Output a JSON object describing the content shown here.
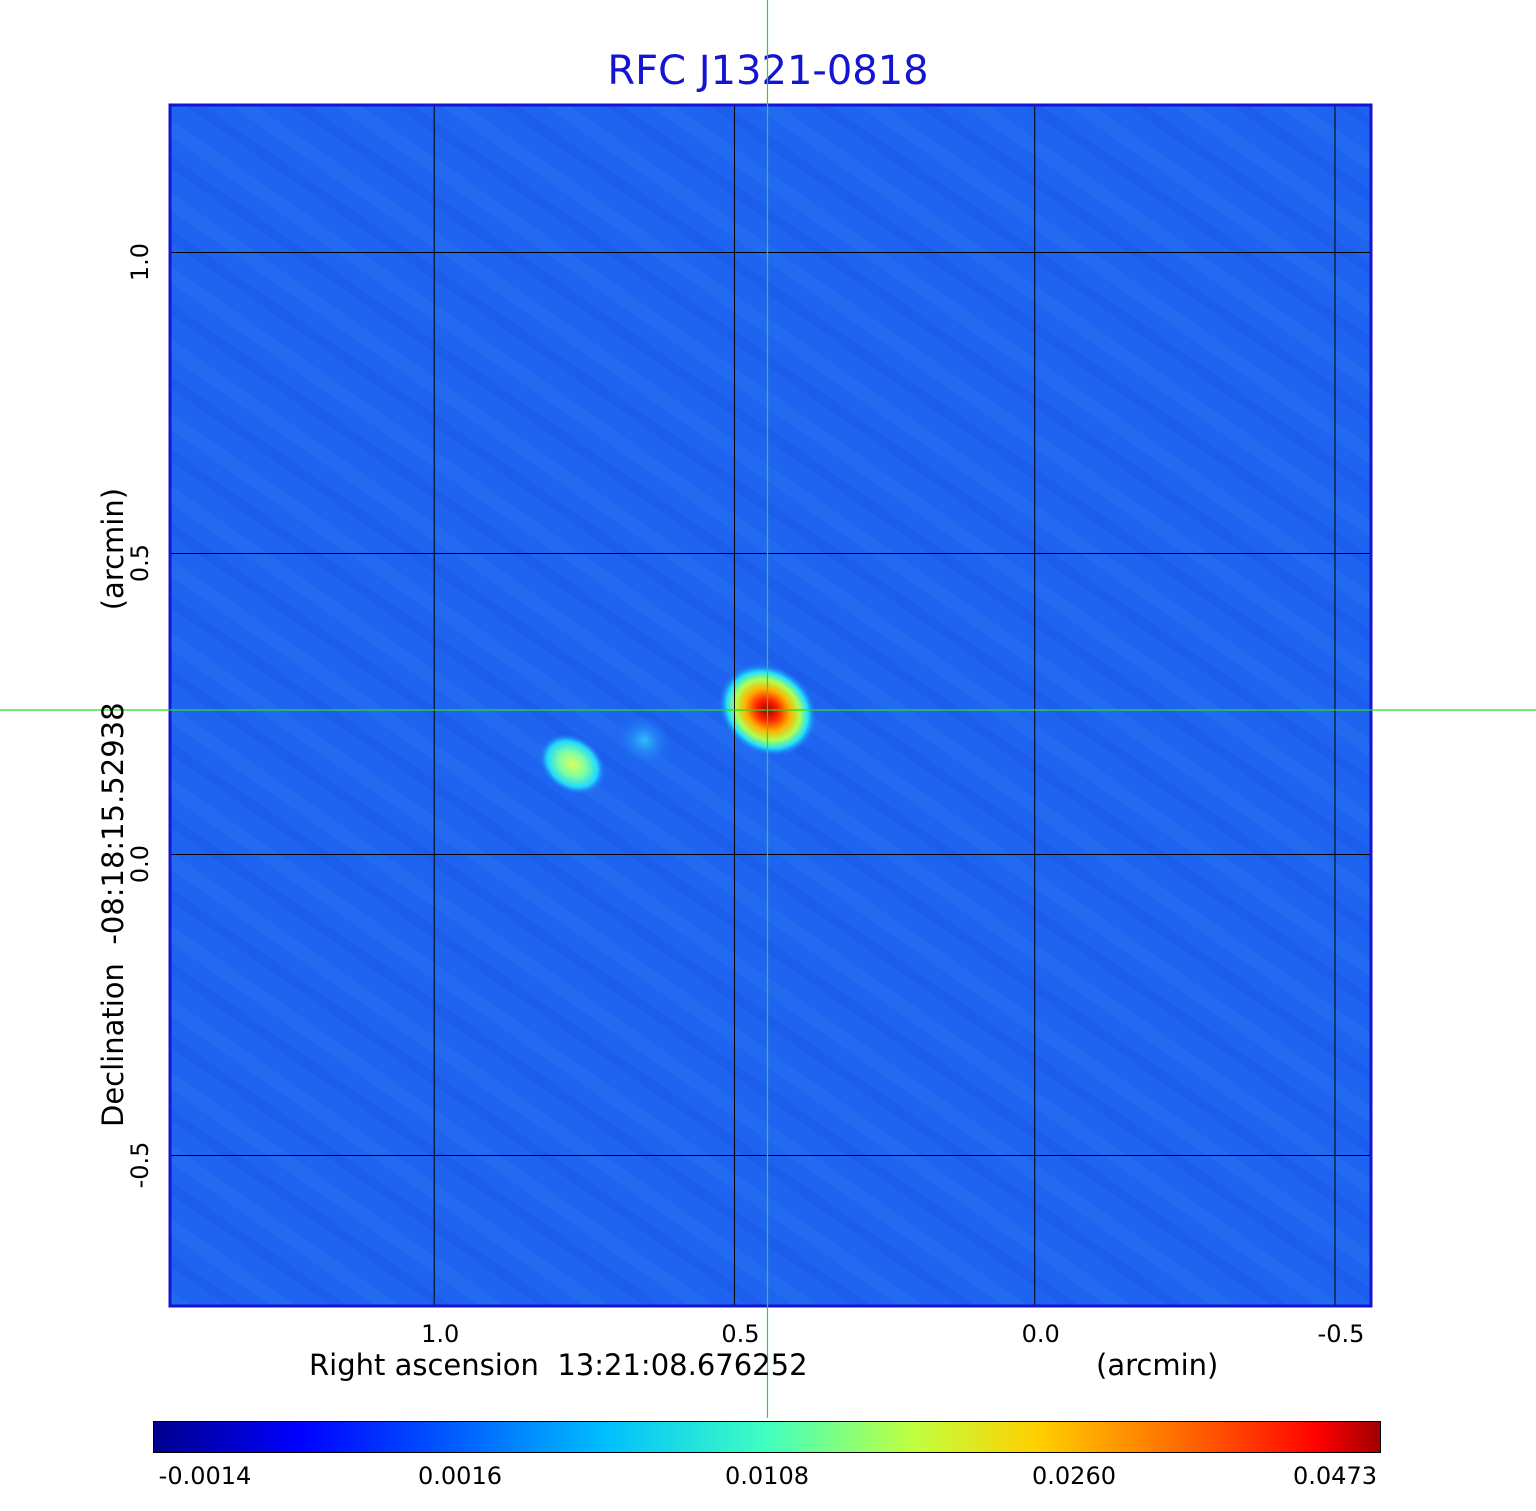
{
  "title": "RFC J1321-0818",
  "x_axis": {
    "label": "Right ascension  13:21:08.676252",
    "unit": "(arcmin)",
    "ticks": [
      "1.0",
      "0.5",
      "0.0",
      "-0.5"
    ],
    "range": [
      1.44,
      -0.56
    ]
  },
  "y_axis": {
    "label": "Declination  -08:18:15.52938",
    "unit": "(arcmin)",
    "ticks": [
      "1.0",
      "0.5",
      "0.0",
      "-0.5"
    ],
    "range": [
      -0.75,
      1.245
    ]
  },
  "colorbar": {
    "colormap": "jet",
    "ticks": [
      "-0.0014",
      "0.0016",
      "0.0108",
      "0.0260",
      "0.0473"
    ]
  },
  "crosshair": {
    "ra_offset": 0.445,
    "dec_offset": 0.24,
    "color": "#22dd22"
  },
  "sources": [
    {
      "ra_offset": 0.445,
      "dec_offset": 0.24,
      "level": 1.0
    },
    {
      "ra_offset": 0.77,
      "dec_offset": 0.15,
      "level": 0.45
    },
    {
      "ra_offset": 0.65,
      "dec_offset": 0.19,
      "level": 0.18
    }
  ],
  "colors": {
    "background": "#1e64f0",
    "frame": "#1414d2",
    "grid": "#000000",
    "title": "#1414d2"
  }
}
